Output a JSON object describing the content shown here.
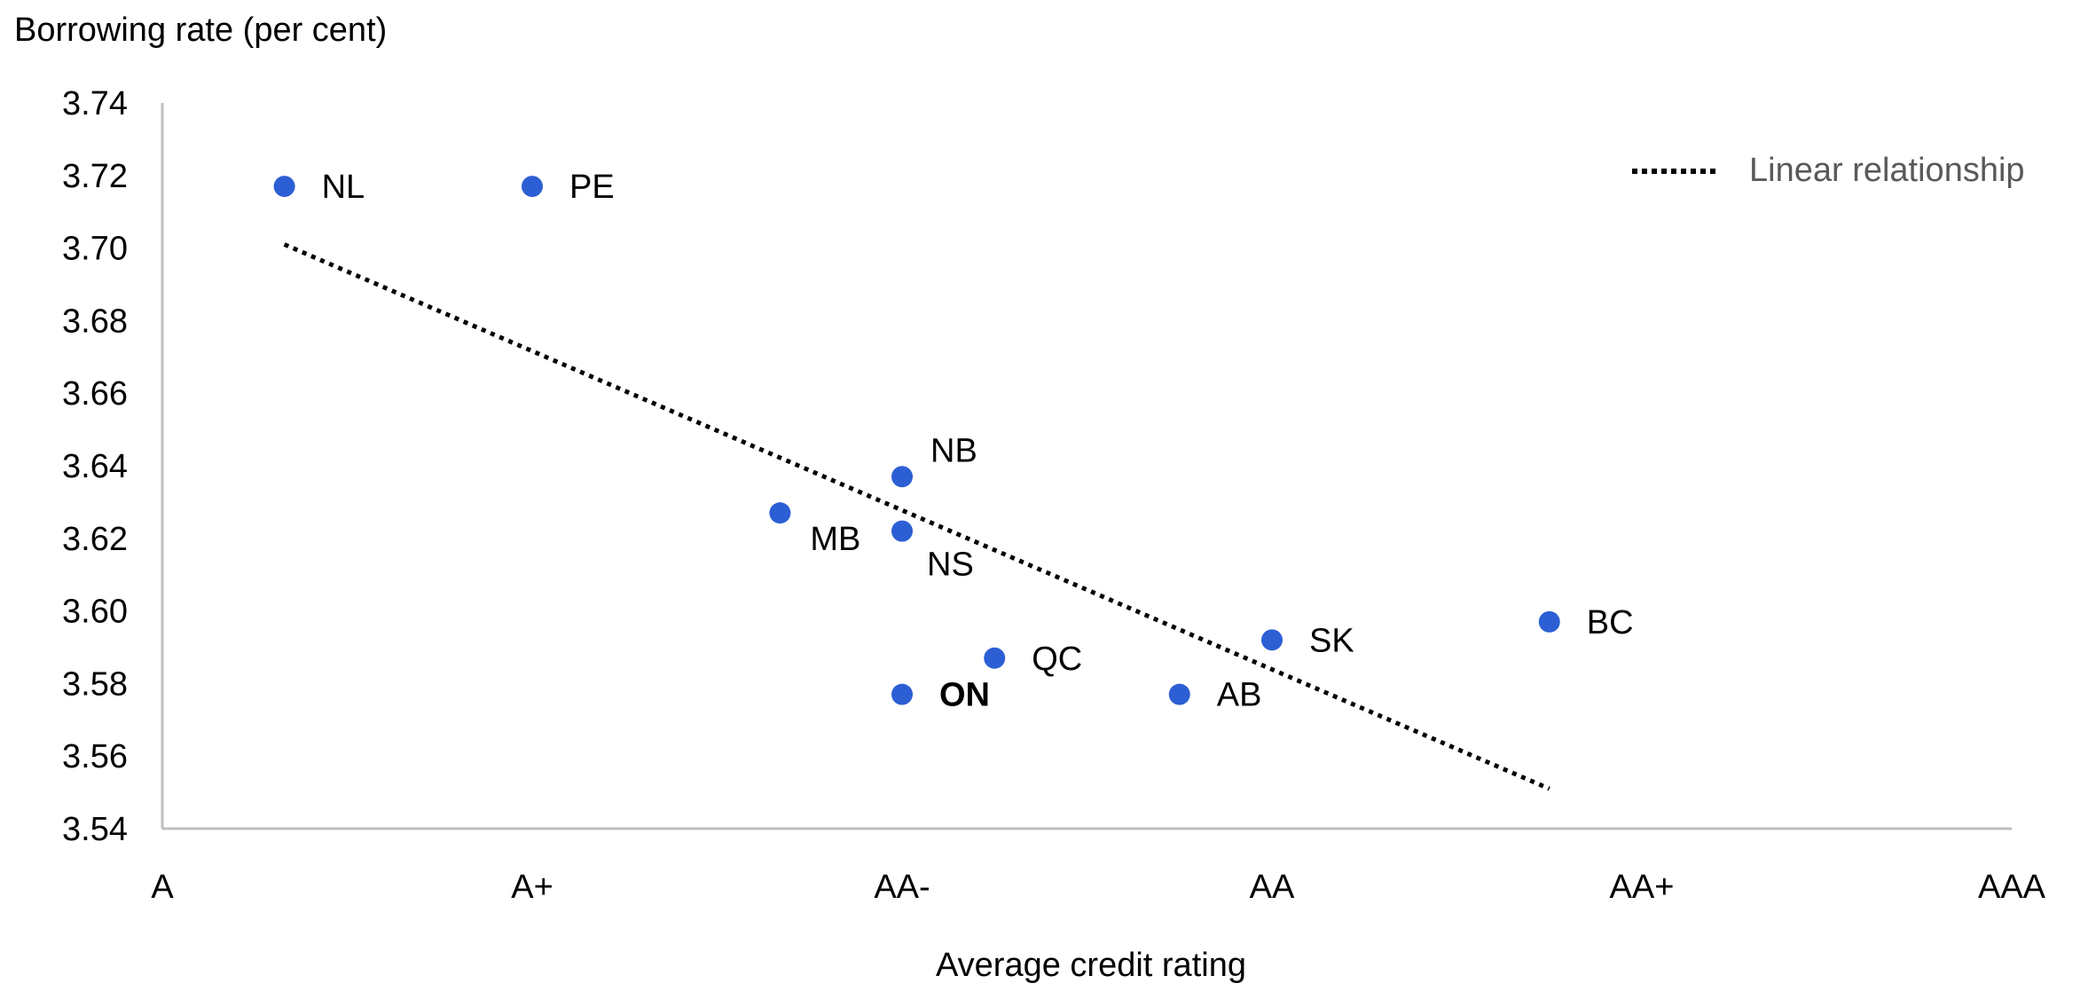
{
  "chart_data": {
    "type": "scatter",
    "title": "",
    "ylabel": "Borrowing rate (per cent)",
    "xlabel": "Average credit rating",
    "x_categories": [
      "A",
      "A+",
      "AA-",
      "AA",
      "AA+",
      "AAA"
    ],
    "xlim": [
      0,
      5
    ],
    "ylim": [
      3.54,
      3.74
    ],
    "y_ticks": [
      "3.74",
      "3.72",
      "3.70",
      "3.68",
      "3.66",
      "3.64",
      "3.62",
      "3.60",
      "3.58",
      "3.56",
      "3.54"
    ],
    "grid": false,
    "points": [
      {
        "label": "NL",
        "x": 0.33,
        "y": 3.717,
        "bold": false,
        "label_pos": "right"
      },
      {
        "label": "PE",
        "x": 1.0,
        "y": 3.717,
        "bold": false,
        "label_pos": "right"
      },
      {
        "label": "NB",
        "x": 2.0,
        "y": 3.637,
        "bold": false,
        "label_pos": "upper-right"
      },
      {
        "label": "MB",
        "x": 1.67,
        "y": 3.627,
        "bold": false,
        "label_pos": "lower-right"
      },
      {
        "label": "NS",
        "x": 2.0,
        "y": 3.622,
        "bold": false,
        "label_pos": "lower-right"
      },
      {
        "label": "QC",
        "x": 2.25,
        "y": 3.587,
        "bold": false,
        "label_pos": "right"
      },
      {
        "label": "ON",
        "x": 2.0,
        "y": 3.577,
        "bold": true,
        "label_pos": "right"
      },
      {
        "label": "AB",
        "x": 2.75,
        "y": 3.577,
        "bold": false,
        "label_pos": "right"
      },
      {
        "label": "SK",
        "x": 3.0,
        "y": 3.592,
        "bold": false,
        "label_pos": "right"
      },
      {
        "label": "BC",
        "x": 3.75,
        "y": 3.597,
        "bold": false,
        "label_pos": "right"
      }
    ],
    "trendline": {
      "name": "Linear relationship",
      "style": "dotted",
      "x": [
        0.33,
        3.75
      ],
      "y": [
        3.701,
        3.551
      ]
    },
    "legend": {
      "position": "top-right",
      "entries": [
        "Linear relationship"
      ]
    },
    "colors": {
      "point": "#2C5FD4",
      "trendline": "#000000",
      "axis": "#BFBFBF",
      "legend_text": "#595959"
    }
  }
}
